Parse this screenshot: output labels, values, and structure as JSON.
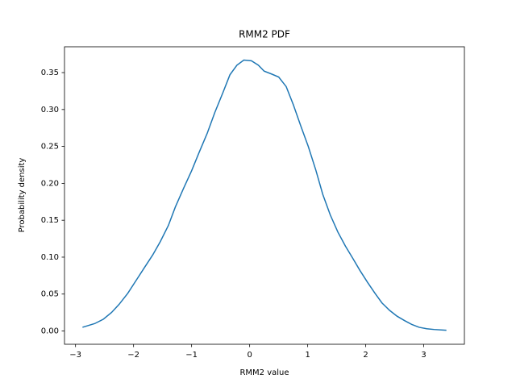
{
  "chart_data": {
    "type": "line",
    "title": "RMM2 PDF",
    "x_label": "RMM2 value",
    "y_label": "Probability density",
    "x": [
      -2.88,
      -2.67,
      -2.52,
      -2.38,
      -2.25,
      -2.1,
      -1.96,
      -1.82,
      -1.67,
      -1.54,
      -1.4,
      -1.28,
      -1.14,
      -1.0,
      -0.87,
      -0.73,
      -0.6,
      -0.46,
      -0.34,
      -0.22,
      -0.1,
      0.03,
      0.15,
      0.25,
      0.38,
      0.5,
      0.63,
      0.75,
      0.88,
      1.01,
      1.14,
      1.26,
      1.39,
      1.52,
      1.65,
      1.78,
      1.9,
      2.03,
      2.16,
      2.28,
      2.41,
      2.54,
      2.67,
      2.79,
      2.92,
      3.05,
      3.18,
      3.39
    ],
    "series": [
      {
        "name": "RMM2",
        "color": "#1f77b4",
        "values": [
          0.005,
          0.01,
          0.016,
          0.025,
          0.036,
          0.051,
          0.068,
          0.085,
          0.103,
          0.121,
          0.143,
          0.168,
          0.193,
          0.217,
          0.242,
          0.268,
          0.296,
          0.323,
          0.347,
          0.36,
          0.367,
          0.366,
          0.36,
          0.352,
          0.348,
          0.344,
          0.331,
          0.307,
          0.278,
          0.25,
          0.218,
          0.185,
          0.157,
          0.134,
          0.115,
          0.098,
          0.082,
          0.066,
          0.051,
          0.038,
          0.028,
          0.02,
          0.014,
          0.009,
          0.005,
          0.003,
          0.002,
          0.001
        ]
      }
    ],
    "xlim": [
      -3.19,
      3.7
    ],
    "ylim": [
      -0.018,
      0.385
    ],
    "xticks": [
      {
        "value": -3,
        "label": "−3"
      },
      {
        "value": -2,
        "label": "−2"
      },
      {
        "value": -1,
        "label": "−1"
      },
      0,
      1,
      2,
      3
    ],
    "yticks": [
      {
        "value": 0,
        "label": "0.00"
      },
      {
        "value": 0.05,
        "label": "0.05"
      },
      {
        "value": 0.1,
        "label": "0.10"
      },
      {
        "value": 0.15,
        "label": "0.15"
      },
      {
        "value": 0.2,
        "label": "0.20"
      },
      {
        "value": 0.25,
        "label": "0.25"
      },
      {
        "value": 0.3,
        "label": "0.30"
      },
      {
        "value": 0.35,
        "label": "0.35"
      }
    ],
    "grid": false
  }
}
